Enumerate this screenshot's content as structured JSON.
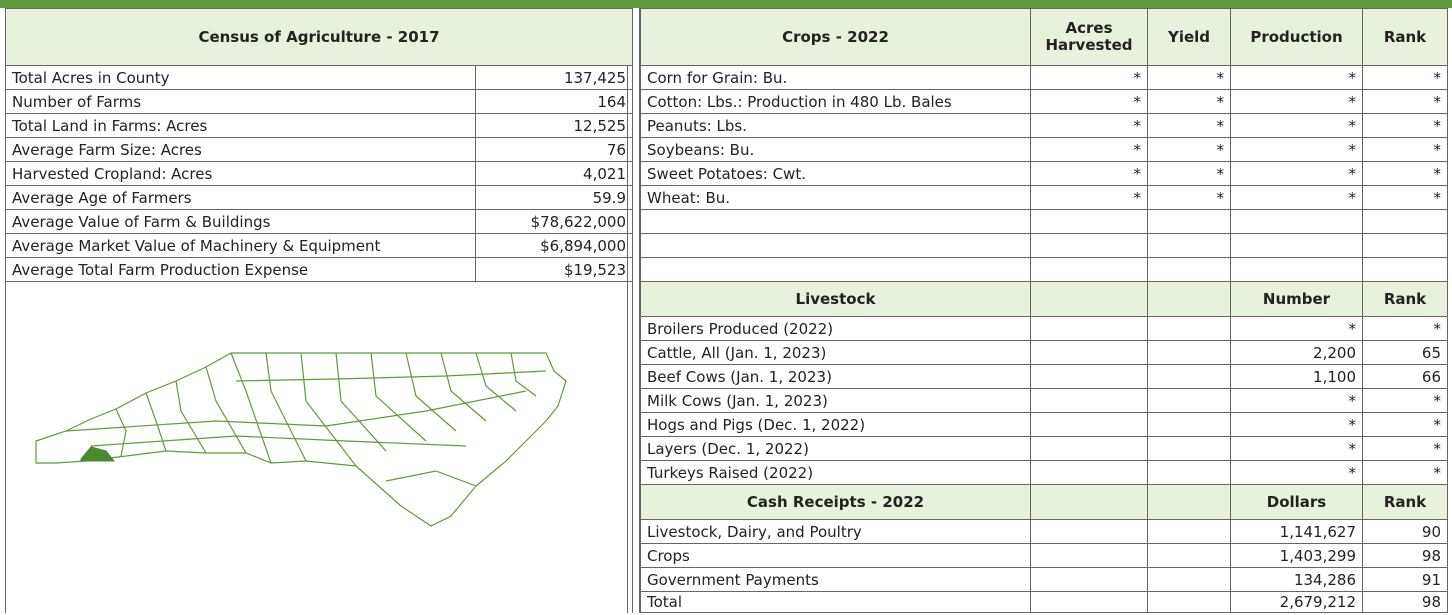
{
  "census": {
    "title": "Census of Agriculture - 2017",
    "rows": [
      [
        "Total Acres in County",
        "137,425"
      ],
      [
        "Number of Farms",
        "164"
      ],
      [
        "Total Land in Farms: Acres",
        "12,525"
      ],
      [
        "Average Farm Size: Acres",
        "76"
      ],
      [
        "Harvested Cropland: Acres",
        "4,021"
      ],
      [
        "Average Age of Farmers",
        "59.9"
      ],
      [
        "Average Value of Farm & Buildings",
        "$78,622,000"
      ],
      [
        "Average Market Value of Machinery & Equipment",
        "$6,894,000"
      ],
      [
        "Average Total Farm Production Expense",
        "$19,523"
      ]
    ]
  },
  "crops": {
    "headers": [
      "Crops - 2022",
      "Acres Harvested",
      "Yield",
      "Production",
      "Rank"
    ],
    "rows": [
      [
        "Corn for Grain: Bu.",
        "*",
        "*",
        "*",
        "*"
      ],
      [
        "Cotton: Lbs.: Production in 480 Lb. Bales",
        "*",
        "*",
        "*",
        "*"
      ],
      [
        "Peanuts: Lbs.",
        "*",
        "*",
        "*",
        "*"
      ],
      [
        "Soybeans: Bu.",
        "*",
        "*",
        "*",
        "*"
      ],
      [
        "Sweet Potatoes: Cwt.",
        "*",
        "*",
        "*",
        "*"
      ],
      [
        "Wheat: Bu.",
        "*",
        "*",
        "*",
        "*"
      ]
    ]
  },
  "livestock": {
    "headers": [
      "Livestock",
      "Number",
      "Rank"
    ],
    "rows": [
      [
        "Broilers Produced (2022)",
        "*",
        "*"
      ],
      [
        "Cattle, All (Jan. 1, 2023)",
        "2,200",
        "65"
      ],
      [
        "Beef Cows (Jan. 1, 2023)",
        "1,100",
        "66"
      ],
      [
        "Milk Cows (Jan. 1, 2023)",
        "*",
        "*"
      ],
      [
        "Hogs and Pigs (Dec. 1, 2022)",
        "*",
        "*"
      ],
      [
        "Layers (Dec. 1, 2022)",
        "*",
        "*"
      ],
      [
        "Turkeys Raised (2022)",
        "*",
        "*"
      ]
    ]
  },
  "cash_receipts": {
    "headers": [
      "Cash Receipts - 2022",
      "Dollars",
      "Rank"
    ],
    "rows": [
      [
        "Livestock, Dairy, and Poultry",
        "1,141,627",
        "90"
      ],
      [
        "Crops",
        "1,403,299",
        "98"
      ],
      [
        "Government Payments",
        "134,286",
        "91"
      ],
      [
        "Total",
        "2,679,212",
        "98"
      ]
    ]
  }
}
